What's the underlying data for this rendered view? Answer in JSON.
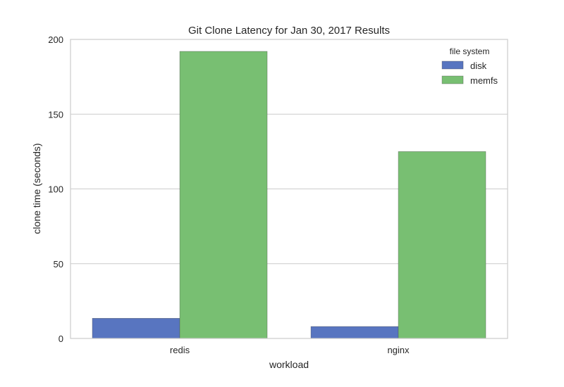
{
  "chart_data": {
    "type": "bar",
    "title": "Git Clone Latency for Jan 30, 2017 Results",
    "xlabel": "workload",
    "ylabel": "clone time (seconds)",
    "categories": [
      "redis",
      "nginx"
    ],
    "series": [
      {
        "name": "disk",
        "values": [
          13.5,
          8
        ],
        "color": "#5875c0"
      },
      {
        "name": "memfs",
        "values": [
          192,
          125
        ],
        "color": "#78bf72"
      }
    ],
    "ylim": [
      0,
      200
    ],
    "yticks": [
      0,
      50,
      100,
      150,
      200
    ],
    "grid": true,
    "legend": {
      "title": "file system",
      "placement": "top-right"
    }
  }
}
